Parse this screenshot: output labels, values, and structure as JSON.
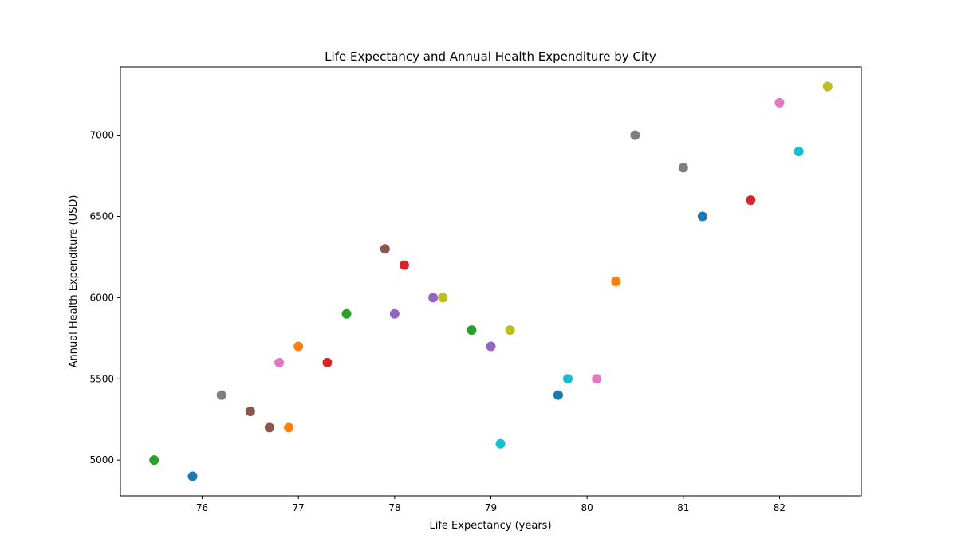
{
  "chart_data": {
    "type": "scatter",
    "title": "Life Expectancy and Annual Health Expenditure by City",
    "xlabel": "Life Expectancy (years)",
    "ylabel": "Annual Health Expenditure (USD)",
    "xlim": [
      75.15,
      82.85
    ],
    "ylim": [
      4780,
      7420
    ],
    "xticks": [
      76,
      77,
      78,
      79,
      80,
      81,
      82
    ],
    "yticks": [
      5000,
      5500,
      6000,
      6500,
      7000
    ],
    "grid": false,
    "legend": "none",
    "points": [
      {
        "x": 75.5,
        "y": 5000,
        "color": "#2ca02c"
      },
      {
        "x": 75.9,
        "y": 4900,
        "color": "#1f77b4"
      },
      {
        "x": 76.2,
        "y": 5400,
        "color": "#7f7f7f"
      },
      {
        "x": 76.5,
        "y": 5300,
        "color": "#8c564b"
      },
      {
        "x": 76.7,
        "y": 5200,
        "color": "#8c564b"
      },
      {
        "x": 76.8,
        "y": 5600,
        "color": "#e377c2"
      },
      {
        "x": 76.9,
        "y": 5200,
        "color": "#ff7f0e"
      },
      {
        "x": 77.0,
        "y": 5700,
        "color": "#ff7f0e"
      },
      {
        "x": 77.3,
        "y": 5600,
        "color": "#d62728"
      },
      {
        "x": 77.5,
        "y": 5900,
        "color": "#2ca02c"
      },
      {
        "x": 77.9,
        "y": 6300,
        "color": "#8c564b"
      },
      {
        "x": 78.0,
        "y": 5900,
        "color": "#9467bd"
      },
      {
        "x": 78.1,
        "y": 6200,
        "color": "#d62728"
      },
      {
        "x": 78.4,
        "y": 6000,
        "color": "#9467bd"
      },
      {
        "x": 78.5,
        "y": 6000,
        "color": "#bcbd22"
      },
      {
        "x": 78.8,
        "y": 5800,
        "color": "#2ca02c"
      },
      {
        "x": 79.0,
        "y": 5700,
        "color": "#9467bd"
      },
      {
        "x": 79.1,
        "y": 5100,
        "color": "#17becf"
      },
      {
        "x": 79.2,
        "y": 5800,
        "color": "#bcbd22"
      },
      {
        "x": 79.7,
        "y": 5400,
        "color": "#1f77b4"
      },
      {
        "x": 79.8,
        "y": 5500,
        "color": "#17becf"
      },
      {
        "x": 80.1,
        "y": 5500,
        "color": "#e377c2"
      },
      {
        "x": 80.3,
        "y": 6100,
        "color": "#ff7f0e"
      },
      {
        "x": 80.5,
        "y": 7000,
        "color": "#7f7f7f"
      },
      {
        "x": 81.0,
        "y": 6800,
        "color": "#7f7f7f"
      },
      {
        "x": 81.2,
        "y": 6500,
        "color": "#1f77b4"
      },
      {
        "x": 81.7,
        "y": 6600,
        "color": "#d62728"
      },
      {
        "x": 82.0,
        "y": 7200,
        "color": "#e377c2"
      },
      {
        "x": 82.2,
        "y": 6900,
        "color": "#17becf"
      },
      {
        "x": 82.5,
        "y": 7300,
        "color": "#bcbd22"
      }
    ]
  }
}
